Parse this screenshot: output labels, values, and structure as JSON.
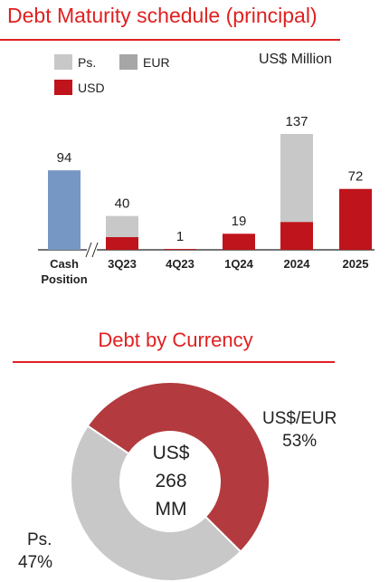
{
  "title": "Debt Maturity schedule (principal)",
  "unit": "US$ Million",
  "legend": [
    {
      "label": "Ps.",
      "color": "#c8c8c8"
    },
    {
      "label": "EUR",
      "color": "#a6a6a6"
    },
    {
      "label": "USD",
      "color": "#c0141c"
    }
  ],
  "chart_data": [
    {
      "type": "bar",
      "title": "Debt Maturity schedule (principal)",
      "unit": "US$ Million",
      "categories": [
        "Cash Position",
        "3Q23",
        "4Q23",
        "1Q24",
        "2024",
        "2025"
      ],
      "totals": [
        94,
        40,
        1,
        19,
        137,
        72
      ],
      "series": [
        {
          "name": "Cash Position",
          "color": "#7697c4",
          "values": [
            94,
            0,
            0,
            0,
            0,
            0
          ]
        },
        {
          "name": "USD",
          "color": "#c0141c",
          "values": [
            0,
            15,
            1,
            19,
            33,
            72
          ]
        },
        {
          "name": "EUR",
          "color": "#a6a6a6",
          "values": [
            0,
            0,
            0,
            0,
            0,
            0
          ]
        },
        {
          "name": "Ps.",
          "color": "#c8c8c8",
          "values": [
            0,
            25,
            0,
            0,
            104,
            0
          ]
        }
      ],
      "axis_break_after": "Cash Position"
    },
    {
      "type": "pie",
      "title": "Debt by Currency",
      "center_label": [
        "US$",
        "268",
        "MM"
      ],
      "slices": [
        {
          "label": "US$/EUR",
          "value": 53,
          "display": "53%",
          "color": "#b33a3e"
        },
        {
          "label": "Ps.",
          "value": 47,
          "display": "47%",
          "color": "#c8c8c8"
        }
      ]
    }
  ],
  "pie_title": "Debt by Currency",
  "pie_center": {
    "line1": "US$",
    "line2": "268",
    "line3": "MM"
  },
  "pie_labels": {
    "usd_name": "US$/EUR",
    "usd_pct": "53%",
    "ps_name": "Ps.",
    "ps_pct": "47%"
  }
}
